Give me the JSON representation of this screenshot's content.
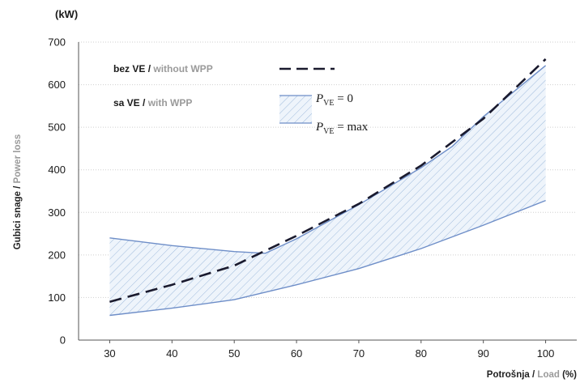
{
  "chart_data": {
    "type": "line",
    "unit_label": "(kW)",
    "ylabel": {
      "primary": "Gubici snage",
      "separator": " / ",
      "secondary": "Power loss"
    },
    "xlabel": {
      "primary": "Potrošnja",
      "separator": " / ",
      "secondary": "Load",
      "suffix": " (%)"
    },
    "xlim": [
      25,
      105
    ],
    "ylim": [
      0,
      700
    ],
    "xticks": [
      30,
      40,
      50,
      60,
      70,
      80,
      90,
      100
    ],
    "yticks": [
      0,
      100,
      200,
      300,
      400,
      500,
      600,
      700
    ],
    "grid": {
      "horizontal": true,
      "style": "dotted"
    },
    "legend": {
      "placement": "top-left",
      "without_wpp": {
        "primary": "bez VE",
        "separator": " / ",
        "secondary": "without WPP"
      },
      "with_wpp": {
        "primary": "sa VE",
        "separator": " / ",
        "secondary": "with WPP"
      },
      "pve_zero": {
        "symbol": "P",
        "subscript": "VE",
        "rest": " = 0"
      },
      "pve_max": {
        "symbol": "P",
        "subscript": "VE",
        "rest": " = max"
      }
    },
    "colors": {
      "dashed": "#1a1a2e",
      "blue": "#6e8ec8",
      "hatch": "#9fbbdc",
      "fill": "#eef4fb"
    },
    "series": [
      {
        "key": "without_wpp",
        "style": "dashed",
        "x": [
          30,
          40,
          50,
          55,
          60,
          70,
          80,
          90,
          100
        ],
        "y": [
          90,
          130,
          175,
          210,
          245,
          320,
          410,
          520,
          660
        ]
      },
      {
        "key": "pve_zero",
        "style": "solid",
        "x": [
          30,
          40,
          50,
          55,
          60,
          70,
          80,
          85,
          90,
          100
        ],
        "y": [
          240,
          222,
          208,
          204,
          238,
          318,
          405,
          455,
          525,
          645
        ]
      },
      {
        "key": "pve_max",
        "style": "solid",
        "x": [
          30,
          40,
          50,
          60,
          70,
          80,
          90,
          100
        ],
        "y": [
          58,
          75,
          95,
          130,
          168,
          215,
          270,
          328
        ]
      }
    ]
  }
}
